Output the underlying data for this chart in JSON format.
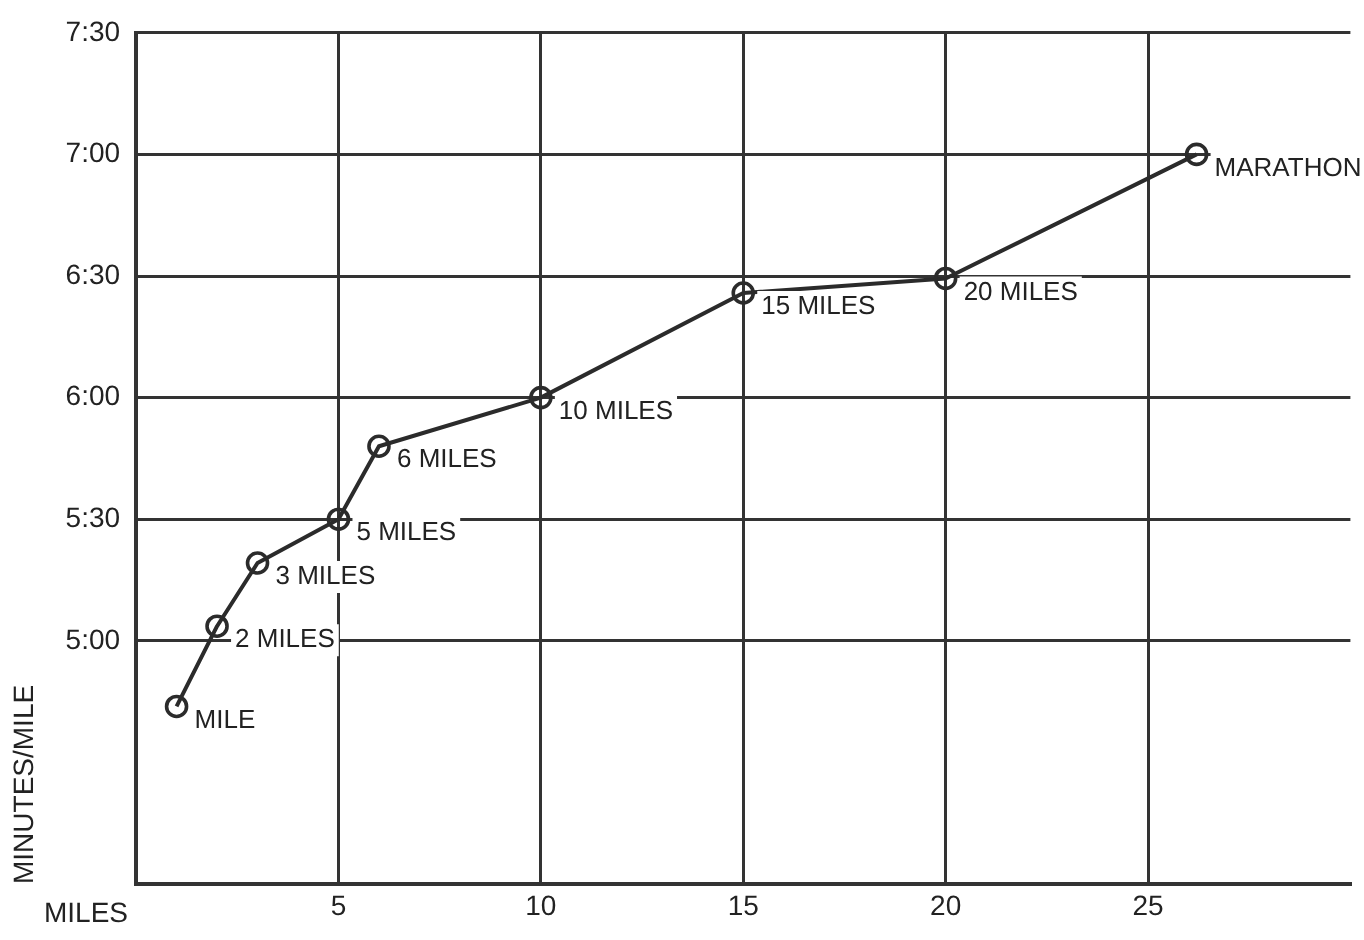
{
  "chart_data": {
    "type": "line",
    "xlabel": "MILES",
    "ylabel": "MINUTES/MILE",
    "x": [
      1,
      2,
      3,
      5,
      6,
      10,
      15,
      20,
      26.2
    ],
    "series": [
      {
        "color": "#2b2b2b",
        "values": [
          4.73,
          5.06,
          5.32,
          5.5,
          5.8,
          6.0,
          6.43,
          6.49,
          7.0
        ]
      }
    ],
    "xlim": [
      0,
      30
    ],
    "xticks": [
      5,
      10,
      15,
      20,
      25
    ],
    "ylim": [
      4,
      7.5
    ],
    "yticks": [
      {
        "value": 5,
        "label": "5:00"
      },
      {
        "value": 5.5,
        "label": "5:30"
      },
      {
        "value": 6,
        "label": "6:00"
      },
      {
        "value": 6.5,
        "label": "6:30"
      },
      {
        "value": 7,
        "label": "7:00"
      },
      {
        "value": 7.5,
        "label": "7:30"
      }
    ],
    "grid": true,
    "legend": false,
    "marker": "circle",
    "line_style": "solid",
    "annotations": [
      {
        "text": "MILE",
        "x": 1,
        "y": 4.73
      },
      {
        "text": "2 MILES",
        "x": 2,
        "y": 5.06
      },
      {
        "text": "3 MILES",
        "x": 3,
        "y": 5.32
      },
      {
        "text": "5 MILES",
        "x": 5,
        "y": 5.5
      },
      {
        "text": "6 MILES",
        "x": 6,
        "y": 5.8
      },
      {
        "text": "10 MILES",
        "x": 10,
        "y": 6.0
      },
      {
        "text": "15 MILES",
        "x": 15,
        "y": 6.43
      },
      {
        "text": "20 MILES",
        "x": 20,
        "y": 6.49
      },
      {
        "text": "MARATHON",
        "x": 26.2,
        "y": 7.0
      }
    ]
  }
}
